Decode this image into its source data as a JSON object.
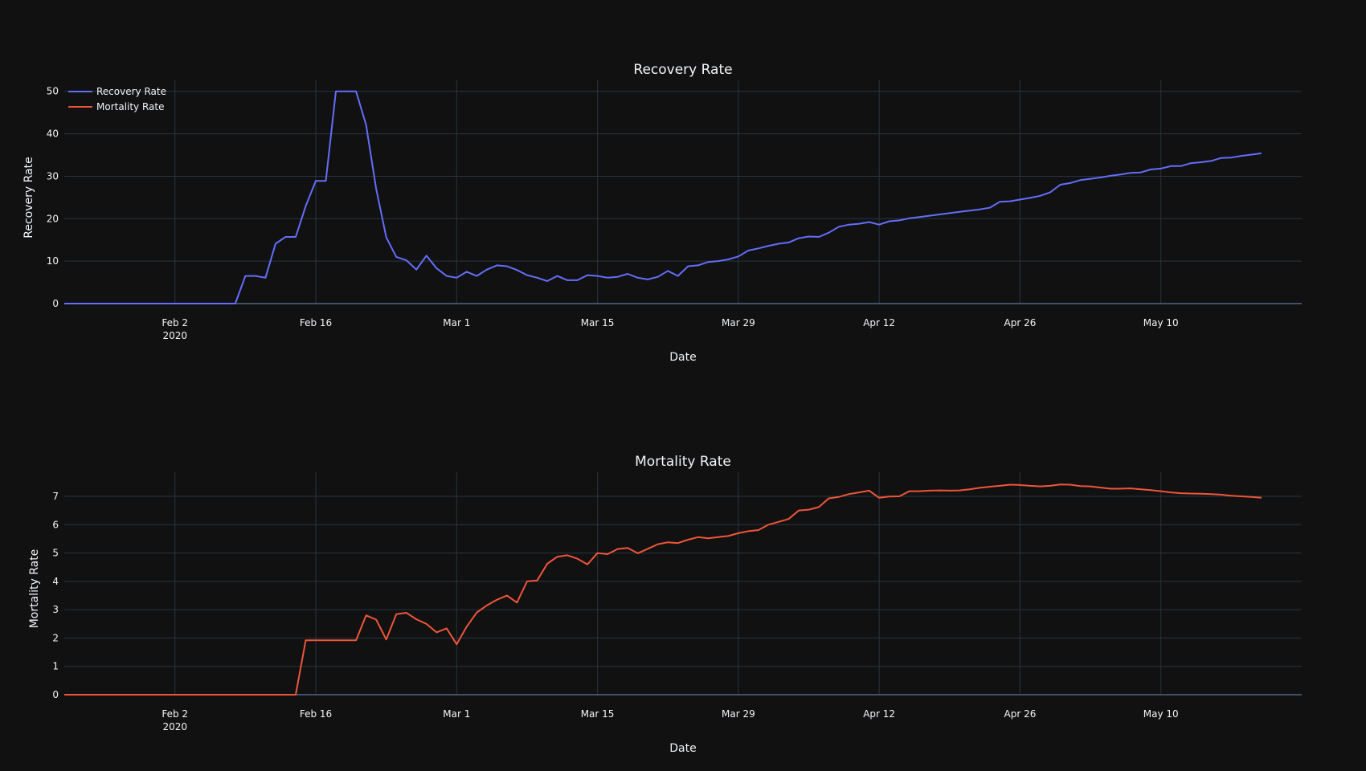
{
  "colors": {
    "background": "#111111",
    "grid": "#283442",
    "text": "#f2f5fa",
    "recovery": "#636efa",
    "mortality": "#ef553b"
  },
  "chart_data": [
    {
      "type": "line",
      "title": "Recovery Rate",
      "xlabel": "Date",
      "ylabel": "Recovery Rate",
      "legend_position": "top-left",
      "grid": true,
      "x_range": [
        "2020-01-22",
        "2020-05-24"
      ],
      "ylim": [
        0,
        52.6
      ],
      "yticks": [
        0,
        10,
        20,
        30,
        40,
        50
      ],
      "xticks": [
        {
          "date": "2020-02-02",
          "label": "Feb 2",
          "sub": "2020"
        },
        {
          "date": "2020-02-16",
          "label": "Feb 16",
          "sub": ""
        },
        {
          "date": "2020-03-01",
          "label": "Mar 1",
          "sub": ""
        },
        {
          "date": "2020-03-15",
          "label": "Mar 15",
          "sub": ""
        },
        {
          "date": "2020-03-29",
          "label": "Mar 29",
          "sub": ""
        },
        {
          "date": "2020-04-12",
          "label": "Apr 12",
          "sub": ""
        },
        {
          "date": "2020-04-26",
          "label": "Apr 26",
          "sub": ""
        },
        {
          "date": "2020-05-10",
          "label": "May 10",
          "sub": ""
        }
      ],
      "series": [
        {
          "name": "Recovery Rate",
          "color": "#636efa",
          "points": [
            [
              "2020-01-22",
              0
            ],
            [
              "2020-02-08",
              0
            ],
            [
              "2020-02-09",
              6.5
            ],
            [
              "2020-02-10",
              6.5
            ],
            [
              "2020-02-11",
              6.1
            ],
            [
              "2020-02-12",
              14.1
            ],
            [
              "2020-02-13",
              15.7
            ],
            [
              "2020-02-14",
              15.7
            ],
            [
              "2020-02-15",
              23
            ],
            [
              "2020-02-16",
              28.9
            ],
            [
              "2020-02-17",
              28.9
            ],
            [
              "2020-02-18",
              50
            ],
            [
              "2020-02-19",
              50
            ],
            [
              "2020-02-20",
              50
            ],
            [
              "2020-02-21",
              42.1
            ],
            [
              "2020-02-22",
              27.1
            ],
            [
              "2020-02-23",
              15.6
            ],
            [
              "2020-02-24",
              11
            ],
            [
              "2020-02-25",
              10.2
            ],
            [
              "2020-02-26",
              8
            ],
            [
              "2020-02-27",
              11.3
            ],
            [
              "2020-02-28",
              8.3
            ],
            [
              "2020-02-29",
              6.5
            ],
            [
              "2020-03-01",
              6.1
            ],
            [
              "2020-03-02",
              7.5
            ],
            [
              "2020-03-03",
              6.5
            ],
            [
              "2020-03-04",
              8
            ],
            [
              "2020-03-05",
              9
            ],
            [
              "2020-03-06",
              8.8
            ],
            [
              "2020-03-07",
              7.9
            ],
            [
              "2020-03-08",
              6.7
            ],
            [
              "2020-03-09",
              6.1
            ],
            [
              "2020-03-10",
              5.3
            ],
            [
              "2020-03-11",
              6.5
            ],
            [
              "2020-03-12",
              5.5
            ],
            [
              "2020-03-13",
              5.5
            ],
            [
              "2020-03-14",
              6.7
            ],
            [
              "2020-03-15",
              6.5
            ],
            [
              "2020-03-16",
              6.1
            ],
            [
              "2020-03-17",
              6.3
            ],
            [
              "2020-03-18",
              7
            ],
            [
              "2020-03-19",
              6.1
            ],
            [
              "2020-03-20",
              5.7
            ],
            [
              "2020-03-21",
              6.3
            ],
            [
              "2020-03-22",
              7.7
            ],
            [
              "2020-03-23",
              6.5
            ],
            [
              "2020-03-24",
              8.8
            ],
            [
              "2020-03-25",
              9
            ],
            [
              "2020-03-26",
              9.8
            ],
            [
              "2020-03-27",
              10
            ],
            [
              "2020-03-28",
              10.4
            ],
            [
              "2020-03-29",
              11.1
            ],
            [
              "2020-03-30",
              12.5
            ],
            [
              "2020-03-31",
              13
            ],
            [
              "2020-04-01",
              13.6
            ],
            [
              "2020-04-02",
              14.1
            ],
            [
              "2020-04-03",
              14.4
            ],
            [
              "2020-04-04",
              15.4
            ],
            [
              "2020-04-05",
              15.8
            ],
            [
              "2020-04-06",
              15.7
            ],
            [
              "2020-04-07",
              16.7
            ],
            [
              "2020-04-08",
              18.1
            ],
            [
              "2020-04-09",
              18.6
            ],
            [
              "2020-04-10",
              18.8
            ],
            [
              "2020-04-11",
              19.2
            ],
            [
              "2020-04-12",
              18.6
            ],
            [
              "2020-04-13",
              19.4
            ],
            [
              "2020-04-14",
              19.6
            ],
            [
              "2020-04-15",
              20.1
            ],
            [
              "2020-04-16",
              20.4
            ],
            [
              "2020-04-17",
              20.7
            ],
            [
              "2020-04-18",
              21
            ],
            [
              "2020-04-19",
              21.3
            ],
            [
              "2020-04-20",
              21.6
            ],
            [
              "2020-04-21",
              21.9
            ],
            [
              "2020-04-22",
              22.2
            ],
            [
              "2020-04-23",
              22.6
            ],
            [
              "2020-04-24",
              24
            ],
            [
              "2020-04-25",
              24.1
            ],
            [
              "2020-04-26",
              24.5
            ],
            [
              "2020-04-27",
              24.9
            ],
            [
              "2020-04-28",
              25.4
            ],
            [
              "2020-04-29",
              26.2
            ],
            [
              "2020-04-30",
              28
            ],
            [
              "2020-05-01",
              28.4
            ],
            [
              "2020-05-02",
              29.1
            ],
            [
              "2020-05-03",
              29.4
            ],
            [
              "2020-05-04",
              29.7
            ],
            [
              "2020-05-05",
              30.1
            ],
            [
              "2020-05-06",
              30.4
            ],
            [
              "2020-05-07",
              30.8
            ],
            [
              "2020-05-08",
              30.9
            ],
            [
              "2020-05-09",
              31.6
            ],
            [
              "2020-05-10",
              31.8
            ],
            [
              "2020-05-11",
              32.4
            ],
            [
              "2020-05-12",
              32.4
            ],
            [
              "2020-05-13",
              33.1
            ],
            [
              "2020-05-14",
              33.3
            ],
            [
              "2020-05-15",
              33.6
            ],
            [
              "2020-05-16",
              34.3
            ],
            [
              "2020-05-17",
              34.4
            ],
            [
              "2020-05-18",
              34.8
            ],
            [
              "2020-05-19",
              35.1
            ],
            [
              "2020-05-20",
              35.4
            ]
          ]
        }
      ]
    },
    {
      "type": "line",
      "title": "Mortality Rate",
      "xlabel": "Date",
      "ylabel": "Mortality Rate",
      "legend_position": "none",
      "grid": true,
      "x_range": [
        "2020-01-22",
        "2020-05-24"
      ],
      "ylim": [
        0,
        7.85
      ],
      "yticks": [
        0,
        1,
        2,
        3,
        4,
        5,
        6,
        7
      ],
      "xticks": [
        {
          "date": "2020-02-02",
          "label": "Feb 2",
          "sub": "2020"
        },
        {
          "date": "2020-02-16",
          "label": "Feb 16",
          "sub": ""
        },
        {
          "date": "2020-03-01",
          "label": "Mar 1",
          "sub": ""
        },
        {
          "date": "2020-03-15",
          "label": "Mar 15",
          "sub": ""
        },
        {
          "date": "2020-03-29",
          "label": "Mar 29",
          "sub": ""
        },
        {
          "date": "2020-04-12",
          "label": "Apr 12",
          "sub": ""
        },
        {
          "date": "2020-04-26",
          "label": "Apr 26",
          "sub": ""
        },
        {
          "date": "2020-05-10",
          "label": "May 10",
          "sub": ""
        }
      ],
      "series": [
        {
          "name": "Mortality Rate",
          "color": "#ef553b",
          "points": [
            [
              "2020-01-22",
              0
            ],
            [
              "2020-02-14",
              0
            ],
            [
              "2020-02-15",
              1.92
            ],
            [
              "2020-02-16",
              1.92
            ],
            [
              "2020-02-17",
              1.92
            ],
            [
              "2020-02-18",
              1.92
            ],
            [
              "2020-02-19",
              1.92
            ],
            [
              "2020-02-20",
              1.92
            ],
            [
              "2020-02-21",
              2.8
            ],
            [
              "2020-02-22",
              2.65
            ],
            [
              "2020-02-23",
              1.95
            ],
            [
              "2020-02-24",
              2.84
            ],
            [
              "2020-02-25",
              2.89
            ],
            [
              "2020-02-26",
              2.66
            ],
            [
              "2020-02-27",
              2.5
            ],
            [
              "2020-02-28",
              2.2
            ],
            [
              "2020-02-29",
              2.34
            ],
            [
              "2020-03-01",
              1.78
            ],
            [
              "2020-03-02",
              2.4
            ],
            [
              "2020-03-03",
              2.9
            ],
            [
              "2020-03-04",
              3.15
            ],
            [
              "2020-03-05",
              3.35
            ],
            [
              "2020-03-06",
              3.5
            ],
            [
              "2020-03-07",
              3.25
            ],
            [
              "2020-03-08",
              4
            ],
            [
              "2020-03-09",
              4.03
            ],
            [
              "2020-03-10",
              4.62
            ],
            [
              "2020-03-11",
              4.87
            ],
            [
              "2020-03-12",
              4.92
            ],
            [
              "2020-03-13",
              4.8
            ],
            [
              "2020-03-14",
              4.6
            ],
            [
              "2020-03-15",
              5
            ],
            [
              "2020-03-16",
              4.96
            ],
            [
              "2020-03-17",
              5.14
            ],
            [
              "2020-03-18",
              5.18
            ],
            [
              "2020-03-19",
              4.99
            ],
            [
              "2020-03-20",
              5.15
            ],
            [
              "2020-03-21",
              5.31
            ],
            [
              "2020-03-22",
              5.38
            ],
            [
              "2020-03-23",
              5.35
            ],
            [
              "2020-03-24",
              5.47
            ],
            [
              "2020-03-25",
              5.56
            ],
            [
              "2020-03-26",
              5.52
            ],
            [
              "2020-03-27",
              5.56
            ],
            [
              "2020-03-28",
              5.6
            ],
            [
              "2020-03-29",
              5.7
            ],
            [
              "2020-03-30",
              5.77
            ],
            [
              "2020-03-31",
              5.81
            ],
            [
              "2020-04-01",
              6
            ],
            [
              "2020-04-02",
              6.1
            ],
            [
              "2020-04-03",
              6.2
            ],
            [
              "2020-04-04",
              6.5
            ],
            [
              "2020-04-05",
              6.53
            ],
            [
              "2020-04-06",
              6.62
            ],
            [
              "2020-04-07",
              6.93
            ],
            [
              "2020-04-08",
              6.98
            ],
            [
              "2020-04-09",
              7.08
            ],
            [
              "2020-04-10",
              7.14
            ],
            [
              "2020-04-11",
              7.2
            ],
            [
              "2020-04-12",
              6.95
            ],
            [
              "2020-04-13",
              6.99
            ],
            [
              "2020-04-14",
              7
            ],
            [
              "2020-04-15",
              7.18
            ],
            [
              "2020-04-16",
              7.18
            ],
            [
              "2020-04-17",
              7.2
            ],
            [
              "2020-04-18",
              7.21
            ],
            [
              "2020-04-19",
              7.2
            ],
            [
              "2020-04-20",
              7.21
            ],
            [
              "2020-04-21",
              7.25
            ],
            [
              "2020-04-22",
              7.3
            ],
            [
              "2020-04-23",
              7.34
            ],
            [
              "2020-04-24",
              7.37
            ],
            [
              "2020-04-25",
              7.41
            ],
            [
              "2020-04-26",
              7.4
            ],
            [
              "2020-04-27",
              7.37
            ],
            [
              "2020-04-28",
              7.35
            ],
            [
              "2020-04-29",
              7.37
            ],
            [
              "2020-04-30",
              7.42
            ],
            [
              "2020-05-01",
              7.41
            ],
            [
              "2020-05-02",
              7.36
            ],
            [
              "2020-05-03",
              7.35
            ],
            [
              "2020-05-04",
              7.31
            ],
            [
              "2020-05-05",
              7.27
            ],
            [
              "2020-05-06",
              7.27
            ],
            [
              "2020-05-07",
              7.28
            ],
            [
              "2020-05-08",
              7.25
            ],
            [
              "2020-05-09",
              7.22
            ],
            [
              "2020-05-10",
              7.18
            ],
            [
              "2020-05-11",
              7.14
            ],
            [
              "2020-05-12",
              7.11
            ],
            [
              "2020-05-13",
              7.1
            ],
            [
              "2020-05-14",
              7.09
            ],
            [
              "2020-05-15",
              7.08
            ],
            [
              "2020-05-16",
              7.06
            ],
            [
              "2020-05-17",
              7.02
            ],
            [
              "2020-05-18",
              7
            ],
            [
              "2020-05-19",
              6.98
            ],
            [
              "2020-05-20",
              6.95
            ]
          ]
        }
      ]
    }
  ]
}
